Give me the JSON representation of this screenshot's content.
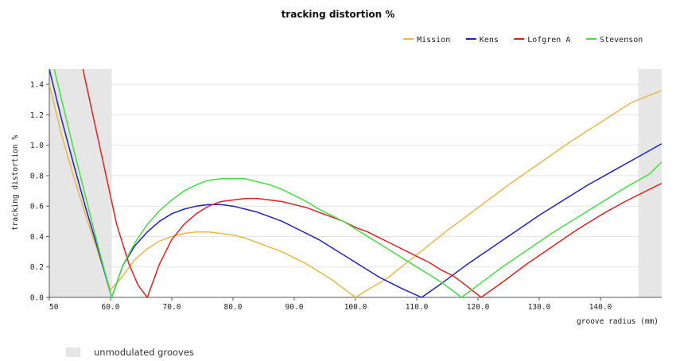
{
  "chart_data": {
    "type": "line",
    "title": "tracking distortion %",
    "xlabel": "groove radius (mm)",
    "ylabel": "tracking distortion %",
    "xlim": [
      50,
      150
    ],
    "ylim": [
      0,
      1.5
    ],
    "x_ticks": [
      50,
      60,
      70,
      80,
      90,
      100,
      110,
      120,
      130,
      140
    ],
    "x_tick_labels": [
      "50",
      "60.0",
      "70.0",
      "80.0",
      "90.0",
      "100.0",
      "110.0",
      "120.0",
      "130.0",
      "140.0"
    ],
    "y_ticks": [
      0,
      0.2,
      0.4,
      0.6,
      0.8,
      1.0,
      1.2,
      1.4
    ],
    "y_tick_labels": [
      "0.0",
      "0.2",
      "0.4",
      "0.6",
      "0.8",
      "1.0",
      "1.2",
      "1.4"
    ],
    "grid": "horizontal",
    "legend_position": "top-right",
    "shaded_regions": [
      {
        "x0": 50,
        "x1": 60.2
      },
      {
        "x0": 146.2,
        "x1": 150
      }
    ],
    "shaded_label": "unmodulated grooves",
    "shaded_color": "#e6e6e6",
    "series": [
      {
        "name": "Mission",
        "color": "#e8b84a",
        "x": [
          50,
          52,
          54,
          56,
          58,
          60,
          62,
          64,
          66,
          68,
          70,
          72,
          74,
          76,
          78,
          80,
          82,
          84,
          86,
          88,
          90,
          92,
          94,
          96,
          98,
          100,
          102,
          105,
          110,
          115,
          120,
          125,
          130,
          135,
          140,
          145,
          150
        ],
        "y": [
          1.4,
          1.07,
          0.79,
          0.53,
          0.29,
          0.05,
          0.14,
          0.25,
          0.32,
          0.37,
          0.4,
          0.42,
          0.43,
          0.43,
          0.42,
          0.41,
          0.39,
          0.36,
          0.33,
          0.3,
          0.26,
          0.22,
          0.17,
          0.12,
          0.06,
          0.0,
          0.05,
          0.12,
          0.28,
          0.44,
          0.59,
          0.74,
          0.88,
          1.02,
          1.15,
          1.28,
          1.36
        ]
      },
      {
        "name": "Kens",
        "color": "#2222bb",
        "x": [
          50,
          52,
          54,
          56,
          58,
          60.2,
          62,
          64,
          66,
          68,
          70,
          72,
          74,
          76,
          78,
          80,
          82,
          84,
          86,
          88,
          90,
          92,
          94,
          96,
          98,
          100,
          102,
          104,
          106,
          108,
          110.8,
          114,
          118,
          122,
          126,
          130,
          134,
          138,
          142,
          146,
          150
        ],
        "y": [
          1.5,
          1.17,
          0.87,
          0.58,
          0.31,
          0.0,
          0.21,
          0.34,
          0.43,
          0.5,
          0.55,
          0.58,
          0.6,
          0.61,
          0.61,
          0.6,
          0.58,
          0.56,
          0.53,
          0.5,
          0.46,
          0.42,
          0.38,
          0.33,
          0.28,
          0.23,
          0.18,
          0.13,
          0.09,
          0.05,
          0.0,
          0.09,
          0.21,
          0.32,
          0.43,
          0.54,
          0.64,
          0.74,
          0.83,
          0.92,
          1.01
        ]
      },
      {
        "name": "Lofgren A",
        "color": "#dd2222",
        "x": [
          55.5,
          57,
          59,
          61,
          63,
          64.5,
          66,
          68,
          70,
          72,
          74,
          76,
          78,
          80,
          82,
          84,
          86,
          88,
          90,
          92,
          94,
          96,
          98,
          100,
          102,
          104,
          106,
          108,
          110,
          112,
          114,
          116,
          118,
          120.5,
          124,
          128,
          132,
          136,
          140,
          144,
          148,
          150
        ],
        "y": [
          1.5,
          1.22,
          0.85,
          0.48,
          0.22,
          0.08,
          0.0,
          0.22,
          0.38,
          0.48,
          0.55,
          0.6,
          0.63,
          0.64,
          0.65,
          0.65,
          0.64,
          0.63,
          0.61,
          0.59,
          0.56,
          0.53,
          0.5,
          0.46,
          0.43,
          0.39,
          0.35,
          0.31,
          0.27,
          0.23,
          0.18,
          0.14,
          0.08,
          0.0,
          0.1,
          0.22,
          0.33,
          0.44,
          0.54,
          0.63,
          0.71,
          0.75
        ]
      },
      {
        "name": "Stevenson",
        "color": "#44dd44",
        "x": [
          50.8,
          52,
          54,
          56,
          58,
          60.2,
          62,
          64,
          66,
          68,
          70,
          72,
          74,
          76,
          78,
          80,
          82,
          84,
          86,
          88,
          90,
          92,
          94,
          96,
          98,
          100,
          102,
          104,
          106,
          108,
          110,
          112,
          114,
          117.3,
          120,
          124,
          128,
          132,
          136,
          140,
          144,
          148,
          150
        ],
        "y": [
          1.5,
          1.3,
          0.97,
          0.65,
          0.33,
          0.0,
          0.21,
          0.36,
          0.48,
          0.57,
          0.64,
          0.7,
          0.74,
          0.77,
          0.78,
          0.78,
          0.78,
          0.76,
          0.74,
          0.71,
          0.67,
          0.63,
          0.58,
          0.54,
          0.5,
          0.45,
          0.4,
          0.35,
          0.3,
          0.25,
          0.2,
          0.15,
          0.1,
          0.0,
          0.08,
          0.2,
          0.31,
          0.42,
          0.52,
          0.62,
          0.72,
          0.81,
          0.89
        ]
      }
    ]
  }
}
